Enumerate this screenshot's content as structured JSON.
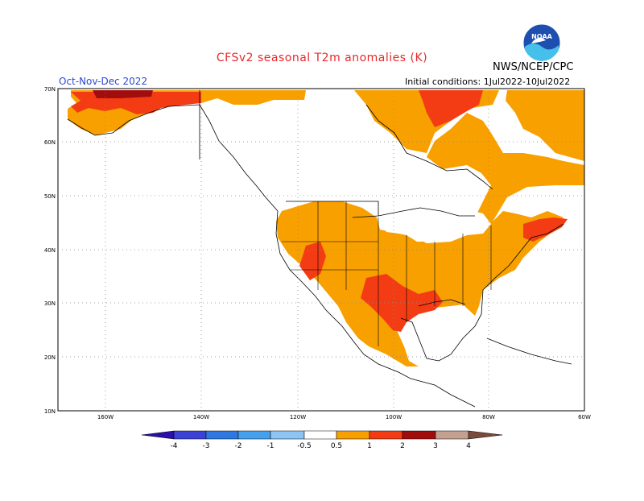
{
  "title": "CFSv2 seasonal T2m anomalies (K)",
  "season": "Oct-Nov-Dec 2022",
  "center": "NWS/NCEP/CPC",
  "initial_conditions": "Initial conditions: 1Jul2022-10Jul2022",
  "logo_text": "NOAA",
  "lat_labels": [
    "70N",
    "60N",
    "50N",
    "40N",
    "30N",
    "20N",
    "10N"
  ],
  "lon_labels": [
    "160W",
    "140W",
    "120W",
    "100W",
    "80W",
    "60W"
  ],
  "colorbar": {
    "tick_labels": [
      "-4",
      "-3",
      "-2",
      "-1",
      "-0.5",
      "0.5",
      "1",
      "2",
      "3",
      "4"
    ],
    "colors": [
      "#2b0fa8",
      "#3c42d6",
      "#2f78e2",
      "#45a0ee",
      "#8cc4f5",
      "#ffffff",
      "#f7a000",
      "#f43c14",
      "#a00d0c",
      "#c4a090",
      "#7a4a3a"
    ]
  },
  "legend_colors": {
    "a0_5_1": "#f7a000",
    "a1_2": "#f43c14",
    "a2_3": "#a00d0c"
  }
}
